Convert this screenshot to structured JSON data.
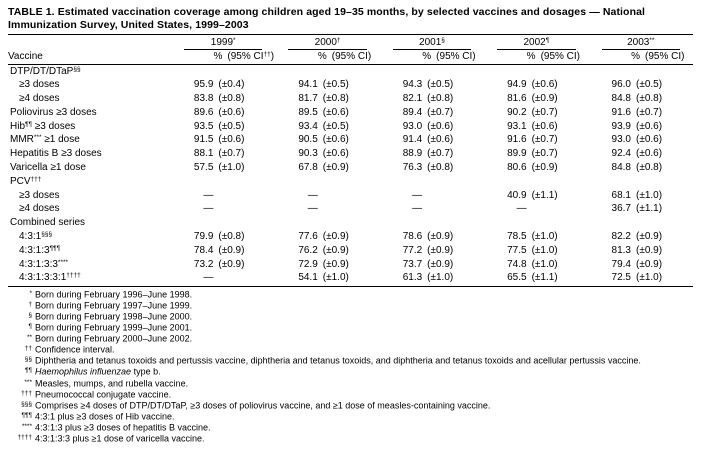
{
  "title": "TABLE 1. Estimated vaccination coverage among children aged 19–35 months, by selected vaccines and dosages — National Immunization Survey, United States, 1999–2003",
  "table": {
    "col_label": "Vaccine",
    "years": [
      "1999^{*}",
      "2000^{†}",
      "2001^{§}",
      "2002^{¶}",
      "2003^{**}"
    ],
    "subheaders": [
      {
        "pct": "%",
        "ci": "(95% CI^{††})"
      },
      {
        "pct": "%",
        "ci": "(95% CI)"
      },
      {
        "pct": "%",
        "ci": "(95% CI)"
      },
      {
        "pct": "%",
        "ci": "(95% CI)"
      },
      {
        "pct": "%",
        "ci": "(95% CI)"
      }
    ],
    "rows": [
      {
        "label": "DTP/DT/DTaP^{§§}",
        "indent": 0,
        "cells": null
      },
      {
        "label": "≥3 doses",
        "indent": 1,
        "cells": [
          [
            "95.9",
            "(±0.4)"
          ],
          [
            "94.1",
            "(±0.5)"
          ],
          [
            "94.3",
            "(±0.5)"
          ],
          [
            "94.9",
            "(±0.6)"
          ],
          [
            "96.0",
            "(±0.5)"
          ]
        ]
      },
      {
        "label": "≥4 doses",
        "indent": 1,
        "cells": [
          [
            "83.8",
            "(±0.8)"
          ],
          [
            "81.7",
            "(±0.8)"
          ],
          [
            "82.1",
            "(±0.8)"
          ],
          [
            "81.6",
            "(±0.9)"
          ],
          [
            "84.8",
            "(±0.8)"
          ]
        ]
      },
      {
        "label": "Poliovirus ≥3 doses",
        "indent": 0,
        "cells": [
          [
            "89.6",
            "(±0.6)"
          ],
          [
            "89.5",
            "(±0.6)"
          ],
          [
            "89.4",
            "(±0.7)"
          ],
          [
            "90.2",
            "(±0.7)"
          ],
          [
            "91.6",
            "(±0.7)"
          ]
        ]
      },
      {
        "label": "Hib^{¶¶} ≥3 doses",
        "indent": 0,
        "cells": [
          [
            "93.5",
            "(±0.5)"
          ],
          [
            "93.4",
            "(±0.5)"
          ],
          [
            "93.0",
            "(±0.6)"
          ],
          [
            "93.1",
            "(±0.6)"
          ],
          [
            "93.9",
            "(±0.6)"
          ]
        ]
      },
      {
        "label": "MMR^{***} ≥1 dose",
        "indent": 0,
        "cells": [
          [
            "91.5",
            "(±0.6)"
          ],
          [
            "90.5",
            "(±0.6)"
          ],
          [
            "91.4",
            "(±0.6)"
          ],
          [
            "91.6",
            "(±0.7)"
          ],
          [
            "93.0",
            "(±0.6)"
          ]
        ]
      },
      {
        "label": "Hepatitis B ≥3 doses",
        "indent": 0,
        "cells": [
          [
            "88.1",
            "(±0.7)"
          ],
          [
            "90.3",
            "(±0.6)"
          ],
          [
            "88.9",
            "(±0.7)"
          ],
          [
            "89.9",
            "(±0.7)"
          ],
          [
            "92.4",
            "(±0.6)"
          ]
        ]
      },
      {
        "label": "Varicella ≥1 dose",
        "indent": 0,
        "cells": [
          [
            "57.5",
            "(±1.0)"
          ],
          [
            "67.8",
            "(±0.9)"
          ],
          [
            "76.3",
            "(±0.8)"
          ],
          [
            "80.6",
            "(±0.9)"
          ],
          [
            "84.8",
            "(±0.8)"
          ]
        ]
      },
      {
        "label": "PCV^{†††}",
        "indent": 0,
        "cells": null
      },
      {
        "label": "≥3 doses",
        "indent": 1,
        "cells": [
          [
            "—",
            ""
          ],
          [
            "—",
            ""
          ],
          [
            "—",
            ""
          ],
          [
            "40.9",
            "(±1.1)"
          ],
          [
            "68.1",
            "(±1.0)"
          ]
        ]
      },
      {
        "label": "≥4 doses",
        "indent": 1,
        "cells": [
          [
            "—",
            ""
          ],
          [
            "—",
            ""
          ],
          [
            "—",
            ""
          ],
          [
            "—",
            ""
          ],
          [
            "36.7",
            "(±1.1)"
          ]
        ]
      },
      {
        "label": "Combined series",
        "indent": 0,
        "cells": null
      },
      {
        "label": "4:3:1^{§§§}",
        "indent": 1,
        "cells": [
          [
            "79.9",
            "(±0.8)"
          ],
          [
            "77.6",
            "(±0.9)"
          ],
          [
            "78.6",
            "(±0.9)"
          ],
          [
            "78.5",
            "(±1.0)"
          ],
          [
            "82.2",
            "(±0.9)"
          ]
        ]
      },
      {
        "label": "4:3:1:3^{¶¶¶}",
        "indent": 1,
        "cells": [
          [
            "78.4",
            "(±0.9)"
          ],
          [
            "76.2",
            "(±0.9)"
          ],
          [
            "77.2",
            "(±0.9)"
          ],
          [
            "77.5",
            "(±1.0)"
          ],
          [
            "81.3",
            "(±0.9)"
          ]
        ]
      },
      {
        "label": "4:3:1:3:3^{****}",
        "indent": 1,
        "cells": [
          [
            "73.2",
            "(±0.9)"
          ],
          [
            "72.9",
            "(±0.9)"
          ],
          [
            "73.7",
            "(±0.9)"
          ],
          [
            "74.8",
            "(±1.0)"
          ],
          [
            "79.4",
            "(±0.9)"
          ]
        ]
      },
      {
        "label": "4:3:1:3:3:1^{††††}",
        "indent": 1,
        "cells": [
          [
            "—",
            ""
          ],
          [
            "54.1",
            "(±1.0)"
          ],
          [
            "61.3",
            "(±1.0)"
          ],
          [
            "65.5",
            "(±1.1)"
          ],
          [
            "72.5",
            "(±1.0)"
          ]
        ]
      }
    ]
  },
  "footnotes": [
    {
      "mark": "*",
      "text": "Born during February 1996–June 1998."
    },
    {
      "mark": "†",
      "text": "Born during February 1997–June 1999."
    },
    {
      "mark": "§",
      "text": "Born during February 1998–June 2000."
    },
    {
      "mark": "¶",
      "text": "Born during February 1999–June 2001."
    },
    {
      "mark": "**",
      "text": "Born during February 2000–June 2002."
    },
    {
      "mark": "††",
      "text": "Confidence interval."
    },
    {
      "mark": "§§",
      "text": "Diphtheria and tetanus toxoids and pertussis vaccine, diphtheria and tetanus toxoids, and diphtheria and tetanus toxoids and acellular pertussis vaccine."
    },
    {
      "mark": "¶¶",
      "text": "_{Haemophilus influenzae} type b."
    },
    {
      "mark": "***",
      "text": "Measles, mumps, and rubella vaccine."
    },
    {
      "mark": "†††",
      "text": "Pneumococcal conjugate vaccine."
    },
    {
      "mark": "§§§",
      "text": "Comprises ≥4 doses of DTP/DT/DTaP, ≥3 doses of poliovirus vaccine, and ≥1 dose of measles-containing vaccine."
    },
    {
      "mark": "¶¶¶",
      "text": "4:3:1 plus ≥3 doses of Hib vaccine."
    },
    {
      "mark": "****",
      "text": "4:3:1:3 plus ≥3 doses of hepatitis B vaccine."
    },
    {
      "mark": "††††",
      "text": "4:3:1:3:3 plus ≥1 dose of varicella vaccine."
    }
  ]
}
